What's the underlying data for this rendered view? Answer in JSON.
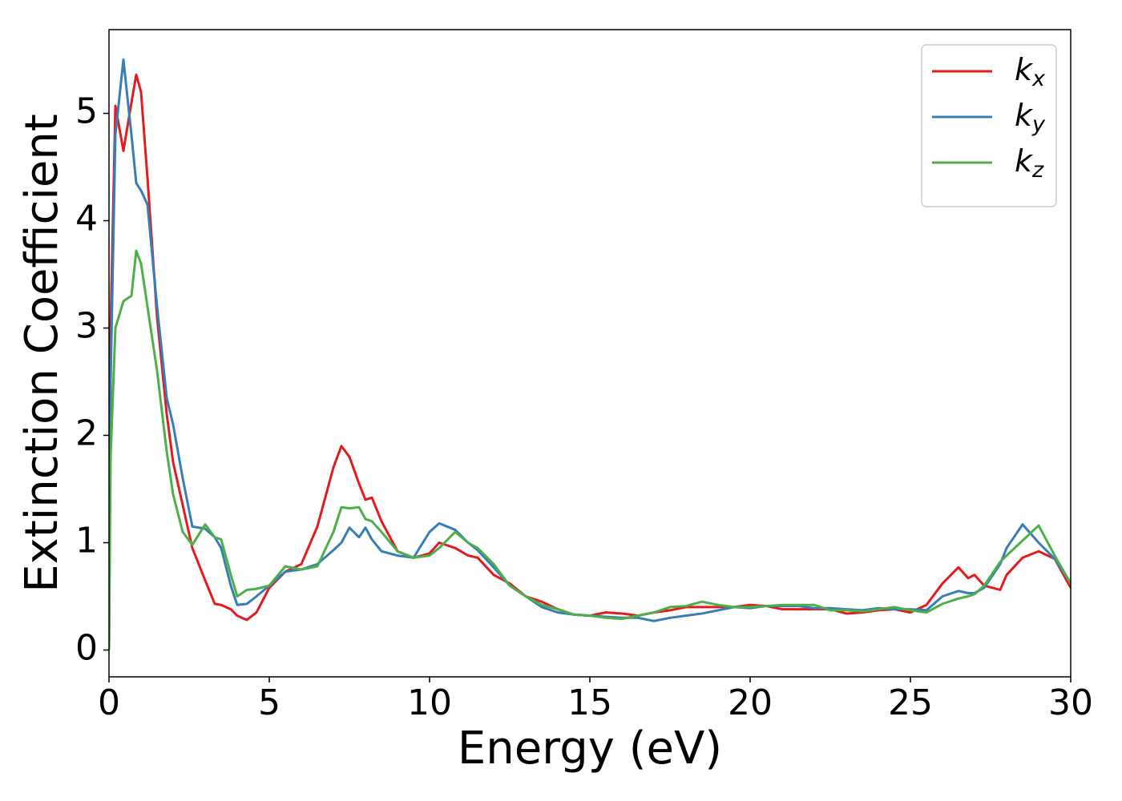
{
  "chart_data": {
    "type": "line",
    "xlabel": "Energy (eV)",
    "ylabel": "Extinction Coefficient",
    "xlim": [
      0,
      30
    ],
    "ylim": [
      -0.25,
      5.78
    ],
    "xticks": [
      0,
      5,
      10,
      15,
      20,
      25,
      30
    ],
    "yticks": [
      0,
      1,
      2,
      3,
      4,
      5
    ],
    "legend": "upper right",
    "x": [
      0,
      0.05,
      0.2,
      0.45,
      0.7,
      0.85,
      1,
      1.2,
      1.5,
      1.8,
      2,
      2.3,
      2.6,
      3,
      3.3,
      3.5,
      3.8,
      4,
      4.3,
      4.6,
      5,
      5.5,
      6,
      6.5,
      7,
      7.25,
      7.5,
      7.8,
      8,
      8.2,
      8.5,
      9,
      9.5,
      10,
      10.3,
      10.8,
      11.2,
      11.5,
      12,
      12.5,
      13,
      13.5,
      14,
      14.5,
      15,
      15.5,
      16,
      16.5,
      17,
      17.5,
      18,
      18.5,
      19,
      19.5,
      20,
      20.5,
      21,
      21.5,
      22,
      22.5,
      23,
      23.5,
      24,
      24.5,
      25,
      25.5,
      26,
      26.5,
      26.8,
      27,
      27.3,
      27.8,
      28,
      28.5,
      29,
      29.5,
      30
    ],
    "series": [
      {
        "name": "kx",
        "color": "#e41a1c",
        "values": [
          0,
          3.0,
          5.07,
          4.65,
          5.1,
          5.36,
          5.2,
          4.4,
          3.1,
          2.2,
          1.75,
          1.35,
          0.95,
          0.65,
          0.43,
          0.42,
          0.38,
          0.32,
          0.28,
          0.35,
          0.58,
          0.73,
          0.8,
          1.15,
          1.7,
          1.9,
          1.8,
          1.55,
          1.4,
          1.42,
          1.2,
          0.92,
          0.86,
          0.9,
          1.0,
          0.95,
          0.88,
          0.86,
          0.7,
          0.62,
          0.5,
          0.45,
          0.38,
          0.33,
          0.32,
          0.35,
          0.34,
          0.32,
          0.35,
          0.37,
          0.4,
          0.4,
          0.4,
          0.4,
          0.42,
          0.41,
          0.38,
          0.38,
          0.38,
          0.38,
          0.34,
          0.35,
          0.37,
          0.38,
          0.35,
          0.42,
          0.62,
          0.77,
          0.67,
          0.7,
          0.6,
          0.56,
          0.7,
          0.86,
          0.92,
          0.85,
          0.58
        ]
      },
      {
        "name": "ky",
        "color": "#377eb8",
        "values": [
          0,
          2.5,
          4.8,
          5.5,
          4.8,
          4.35,
          4.28,
          4.15,
          3.2,
          2.35,
          2.1,
          1.6,
          1.15,
          1.13,
          1.05,
          0.95,
          0.6,
          0.42,
          0.43,
          0.5,
          0.6,
          0.73,
          0.75,
          0.8,
          0.93,
          1.0,
          1.14,
          1.05,
          1.14,
          1.03,
          0.92,
          0.88,
          0.86,
          1.1,
          1.18,
          1.12,
          1.0,
          0.93,
          0.77,
          0.6,
          0.5,
          0.4,
          0.35,
          0.33,
          0.32,
          0.31,
          0.3,
          0.3,
          0.27,
          0.3,
          0.32,
          0.34,
          0.37,
          0.4,
          0.39,
          0.41,
          0.41,
          0.41,
          0.39,
          0.39,
          0.38,
          0.37,
          0.39,
          0.38,
          0.38,
          0.37,
          0.5,
          0.55,
          0.53,
          0.53,
          0.58,
          0.8,
          0.95,
          1.17,
          1.0,
          0.85,
          0.62
        ]
      },
      {
        "name": "kz",
        "color": "#4daf4a",
        "values": [
          0,
          1.8,
          3.0,
          3.25,
          3.3,
          3.72,
          3.6,
          3.2,
          2.6,
          1.85,
          1.45,
          1.1,
          0.98,
          1.17,
          1.05,
          1.03,
          0.7,
          0.5,
          0.56,
          0.57,
          0.6,
          0.78,
          0.75,
          0.78,
          1.1,
          1.33,
          1.32,
          1.33,
          1.22,
          1.2,
          1.1,
          0.92,
          0.86,
          0.88,
          0.95,
          1.1,
          1.0,
          0.95,
          0.8,
          0.6,
          0.5,
          0.42,
          0.38,
          0.33,
          0.32,
          0.3,
          0.29,
          0.32,
          0.35,
          0.4,
          0.41,
          0.45,
          0.42,
          0.4,
          0.4,
          0.41,
          0.42,
          0.42,
          0.42,
          0.37,
          0.37,
          0.36,
          0.38,
          0.4,
          0.37,
          0.35,
          0.43,
          0.48,
          0.5,
          0.52,
          0.6,
          0.82,
          0.88,
          1.02,
          1.16,
          0.88,
          0.62
        ]
      }
    ]
  }
}
